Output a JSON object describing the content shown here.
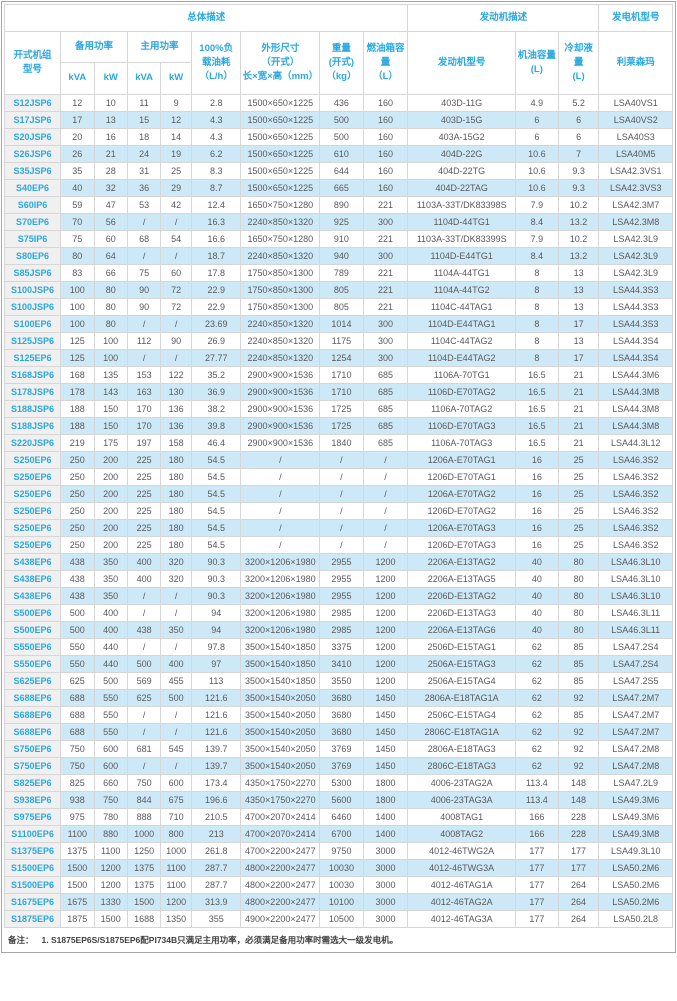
{
  "table": {
    "header": {
      "group_overall": "总体描述",
      "group_engine": "发动机描述",
      "group_genset": "发电机型号",
      "model": "开式机组\n型号",
      "standby_power": "备用功率",
      "prime_power": "主用功率",
      "kva": "kVA",
      "kw": "kW",
      "fuel_consumption": "100%负\n载油耗\n（L/h）",
      "dimensions": "外形尺寸\n（开式）\n长×宽×高（mm）",
      "weight": "重量\n(开式)\n（kg）",
      "tank": "燃油箱容量\n（L）",
      "engine_model": "发动机型号",
      "oil_capacity": "机油容量\n(L)",
      "coolant_capacity": "冷却液量\n(L)",
      "leroy_somer": "利莱森玛"
    },
    "rows": [
      [
        "S12JSP6",
        "12",
        "10",
        "11",
        "9",
        "2.8",
        "1500×650×1225",
        "436",
        "160",
        "403D-11G",
        "4.9",
        "5.2",
        "LSA40VS1"
      ],
      [
        "S17JSP6",
        "17",
        "13",
        "15",
        "12",
        "4.3",
        "1500×650×1225",
        "500",
        "160",
        "403D-15G",
        "6",
        "6",
        "LSA40VS2"
      ],
      [
        "S20JSP6",
        "20",
        "16",
        "18",
        "14",
        "4.3",
        "1500×650×1225",
        "500",
        "160",
        "403A-15G2",
        "6",
        "6",
        "LSA40S3"
      ],
      [
        "S26JSP6",
        "26",
        "21",
        "24",
        "19",
        "6.2",
        "1500×650×1225",
        "610",
        "160",
        "404D-22G",
        "10.6",
        "7",
        "LSA40M5"
      ],
      [
        "S35JSP6",
        "35",
        "28",
        "31",
        "25",
        "8.3",
        "1500×650×1225",
        "644",
        "160",
        "404D-22TG",
        "10.6",
        "9.3",
        "LSA42.3VS1"
      ],
      [
        "S40EP6",
        "40",
        "32",
        "36",
        "29",
        "8.7",
        "1500×650×1225",
        "665",
        "160",
        "404D-22TAG",
        "10.6",
        "9.3",
        "LSA42.3VS3"
      ],
      [
        "S60IP6",
        "59",
        "47",
        "53",
        "42",
        "12.4",
        "1650×750×1280",
        "890",
        "221",
        "1103A-33T/DK83398S",
        "7.9",
        "10.2",
        "LSA42.3M7"
      ],
      [
        "S70EP6",
        "70",
        "56",
        "/",
        "/",
        "16.3",
        "2240×850×1320",
        "925",
        "300",
        "1104D-44TG1",
        "8.4",
        "13.2",
        "LSA42.3M8"
      ],
      [
        "S75IP6",
        "75",
        "60",
        "68",
        "54",
        "16.6",
        "1650×750×1280",
        "910",
        "221",
        "1103A-33T/DK83399S",
        "7.9",
        "10.2",
        "LSA42.3L9"
      ],
      [
        "S80EP6",
        "80",
        "64",
        "/",
        "/",
        "18.7",
        "2240×850×1320",
        "940",
        "300",
        "1104D-E44TG1",
        "8.4",
        "13.2",
        "LSA42.3L9"
      ],
      [
        "S85JSP6",
        "83",
        "66",
        "75",
        "60",
        "17.8",
        "1750×850×1300",
        "789",
        "221",
        "1104A-44TG1",
        "8",
        "13",
        "LSA42.3L9"
      ],
      [
        "S100JSP6",
        "100",
        "80",
        "90",
        "72",
        "22.9",
        "1750×850×1300",
        "805",
        "221",
        "1104A-44TG2",
        "8",
        "13",
        "LSA44.3S3"
      ],
      [
        "S100JSP6",
        "100",
        "80",
        "90",
        "72",
        "22.9",
        "1750×850×1300",
        "805",
        "221",
        "1104C-44TAG1",
        "8",
        "13",
        "LSA44.3S3"
      ],
      [
        "S100EP6",
        "100",
        "80",
        "/",
        "/",
        "23.69",
        "2240×850×1320",
        "1014",
        "300",
        "1104D-E44TAG1",
        "8",
        "17",
        "LSA44.3S3"
      ],
      [
        "S125JSP6",
        "125",
        "100",
        "112",
        "90",
        "26.9",
        "2240×850×1320",
        "1175",
        "300",
        "1104C-44TAG2",
        "8",
        "13",
        "LSA44.3S4"
      ],
      [
        "S125EP6",
        "125",
        "100",
        "/",
        "/",
        "27.77",
        "2240×850×1320",
        "1254",
        "300",
        "1104D-E44TAG2",
        "8",
        "17",
        "LSA44.3S4"
      ],
      [
        "S168JSP6",
        "168",
        "135",
        "153",
        "122",
        "35.2",
        "2900×900×1536",
        "1710",
        "685",
        "1106A-70TG1",
        "16.5",
        "21",
        "LSA44.3M6"
      ],
      [
        "S178JSP6",
        "178",
        "143",
        "163",
        "130",
        "36.9",
        "2900×900×1536",
        "1710",
        "685",
        "1106D-E70TAG2",
        "16.5",
        "21",
        "LSA44.3M8"
      ],
      [
        "S188JSP6",
        "188",
        "150",
        "170",
        "136",
        "38.2",
        "2900×900×1536",
        "1725",
        "685",
        "1106A-70TAG2",
        "16.5",
        "21",
        "LSA44.3M8"
      ],
      [
        "S188JSP6",
        "188",
        "150",
        "170",
        "136",
        "39.8",
        "2900×900×1536",
        "1725",
        "685",
        "1106D-E70TAG3",
        "16.5",
        "21",
        "LSA44.3M8"
      ],
      [
        "S220JSP6",
        "219",
        "175",
        "197",
        "158",
        "46.4",
        "2900×900×1536",
        "1840",
        "685",
        "1106A-70TAG3",
        "16.5",
        "21",
        "LSA44.3L12"
      ],
      [
        "S250EP6",
        "250",
        "200",
        "225",
        "180",
        "54.5",
        "/",
        "/",
        "/",
        "1206A-E70TAG1",
        "16",
        "25",
        "LSA46.3S2"
      ],
      [
        "S250EP6",
        "250",
        "200",
        "225",
        "180",
        "54.5",
        "/",
        "/",
        "/",
        "1206D-E70TAG1",
        "16",
        "25",
        "LSA46.3S2"
      ],
      [
        "S250EP6",
        "250",
        "200",
        "225",
        "180",
        "54.5",
        "/",
        "/",
        "/",
        "1206A-E70TAG2",
        "16",
        "25",
        "LSA46.3S2"
      ],
      [
        "S250EP6",
        "250",
        "200",
        "225",
        "180",
        "54.5",
        "/",
        "/",
        "/",
        "1206D-E70TAG2",
        "16",
        "25",
        "LSA46.3S2"
      ],
      [
        "S250EP6",
        "250",
        "200",
        "225",
        "180",
        "54.5",
        "/",
        "/",
        "/",
        "1206A-E70TAG3",
        "16",
        "25",
        "LSA46.3S2"
      ],
      [
        "S250EP6",
        "250",
        "200",
        "225",
        "180",
        "54.5",
        "/",
        "/",
        "/",
        "1206D-E70TAG3",
        "16",
        "25",
        "LSA46.3S2"
      ],
      [
        "S438EP6",
        "438",
        "350",
        "400",
        "320",
        "90.3",
        "3200×1206×1980",
        "2955",
        "1200",
        "2206A-E13TAG2",
        "40",
        "80",
        "LSA46.3L10"
      ],
      [
        "S438EP6",
        "438",
        "350",
        "400",
        "320",
        "90.3",
        "3200×1206×1980",
        "2955",
        "1200",
        "2206A-E13TAG5",
        "40",
        "80",
        "LSA46.3L10"
      ],
      [
        "S438EP6",
        "438",
        "350",
        "/",
        "/",
        "90.3",
        "3200×1206×1980",
        "2955",
        "1200",
        "2206D-E13TAG2",
        "40",
        "80",
        "LSA46.3L10"
      ],
      [
        "S500EP6",
        "500",
        "400",
        "/",
        "/",
        "94",
        "3200×1206×1980",
        "2985",
        "1200",
        "2206D-E13TAG3",
        "40",
        "80",
        "LSA46.3L11"
      ],
      [
        "S500EP6",
        "500",
        "400",
        "438",
        "350",
        "94",
        "3200×1206×1980",
        "2985",
        "1200",
        "2206A-E13TAG6",
        "40",
        "80",
        "LSA46.3L11"
      ],
      [
        "S550EP6",
        "550",
        "440",
        "/",
        "/",
        "97.8",
        "3500×1540×1850",
        "3375",
        "1200",
        "2506D-E15TAG1",
        "62",
        "85",
        "LSA47.2S4"
      ],
      [
        "S550EP6",
        "550",
        "440",
        "500",
        "400",
        "97",
        "3500×1540×1850",
        "3410",
        "1200",
        "2506A-E15TAG3",
        "62",
        "85",
        "LSA47.2S4"
      ],
      [
        "S625EP6",
        "625",
        "500",
        "569",
        "455",
        "113",
        "3500×1540×1850",
        "3550",
        "1200",
        "2506A-E15TAG4",
        "62",
        "85",
        "LSA47.2S5"
      ],
      [
        "S688EP6",
        "688",
        "550",
        "625",
        "500",
        "121.6",
        "3500×1540×2050",
        "3680",
        "1450",
        "2806A-E18TAG1A",
        "62",
        "92",
        "LSA47.2M7"
      ],
      [
        "S688EP6",
        "688",
        "550",
        "/",
        "/",
        "121.6",
        "3500×1540×2050",
        "3680",
        "1450",
        "2506C-E15TAG4",
        "62",
        "85",
        "LSA47.2M7"
      ],
      [
        "S688EP6",
        "688",
        "550",
        "/",
        "/",
        "121.6",
        "3500×1540×2050",
        "3680",
        "1450",
        "2806C-E18TAG1A",
        "62",
        "92",
        "LSA47.2M7"
      ],
      [
        "S750EP6",
        "750",
        "600",
        "681",
        "545",
        "139.7",
        "3500×1540×2050",
        "3769",
        "1450",
        "2806A-E18TAG3",
        "62",
        "92",
        "LSA47.2M8"
      ],
      [
        "S750EP6",
        "750",
        "600",
        "/",
        "/",
        "139.7",
        "3500×1540×2050",
        "3769",
        "1450",
        "2806C-E18TAG3",
        "62",
        "92",
        "LSA47.2M8"
      ],
      [
        "S825EP6",
        "825",
        "660",
        "750",
        "600",
        "173.4",
        "4350×1750×2270",
        "5300",
        "1800",
        "4006-23TAG2A",
        "113.4",
        "148",
        "LSA47.2L9"
      ],
      [
        "S938EP6",
        "938",
        "750",
        "844",
        "675",
        "196.6",
        "4350×1750×2270",
        "5600",
        "1800",
        "4006-23TAG3A",
        "113.4",
        "148",
        "LSA49.3M6"
      ],
      [
        "S975EP6",
        "975",
        "780",
        "888",
        "710",
        "210.5",
        "4700×2070×2414",
        "6460",
        "1400",
        "4008TAG1",
        "166",
        "228",
        "LSA49.3M6"
      ],
      [
        "S1100EP6",
        "1100",
        "880",
        "1000",
        "800",
        "213",
        "4700×2070×2414",
        "6700",
        "1400",
        "4008TAG2",
        "166",
        "228",
        "LSA49.3M8"
      ],
      [
        "S1375EP6",
        "1375",
        "1100",
        "1250",
        "1000",
        "261.8",
        "4700×2200×2477",
        "9750",
        "3000",
        "4012-46TWG2A",
        "177",
        "177",
        "LSA49.3L10"
      ],
      [
        "S1500EP6",
        "1500",
        "1200",
        "1375",
        "1100",
        "287.7",
        "4800×2200×2477",
        "10030",
        "3000",
        "4012-46TWG3A",
        "177",
        "177",
        "LSA50.2M6"
      ],
      [
        "S1500EP6",
        "1500",
        "1200",
        "1375",
        "1100",
        "287.7",
        "4800×2200×2477",
        "10030",
        "3000",
        "4012-46TAG1A",
        "177",
        "264",
        "LSA50.2M6"
      ],
      [
        "S1675EP6",
        "1675",
        "1330",
        "1500",
        "1200",
        "313.9",
        "4800×2200×2477",
        "10100",
        "3000",
        "4012-46TAG2A",
        "177",
        "264",
        "LSA50.2M6"
      ],
      [
        "S1875EP6",
        "1875",
        "1500",
        "1688",
        "1350",
        "355",
        "4900×2200×2477",
        "10500",
        "3000",
        "4012-46TAG3A",
        "177",
        "264",
        "LSA50.2L8"
      ]
    ]
  },
  "note": {
    "label": "备注：",
    "text": "1.  S1875EP6S/S1875EP6配PI734B只满足主用功率，必须满足备用功率时需选大一级发电机。"
  },
  "colors": {
    "accent_cyan": "#2aa8e0",
    "stripe_blue": "#cde9f8",
    "model_col_bg": "#f0f0f0",
    "border": "#d6d6d6"
  }
}
